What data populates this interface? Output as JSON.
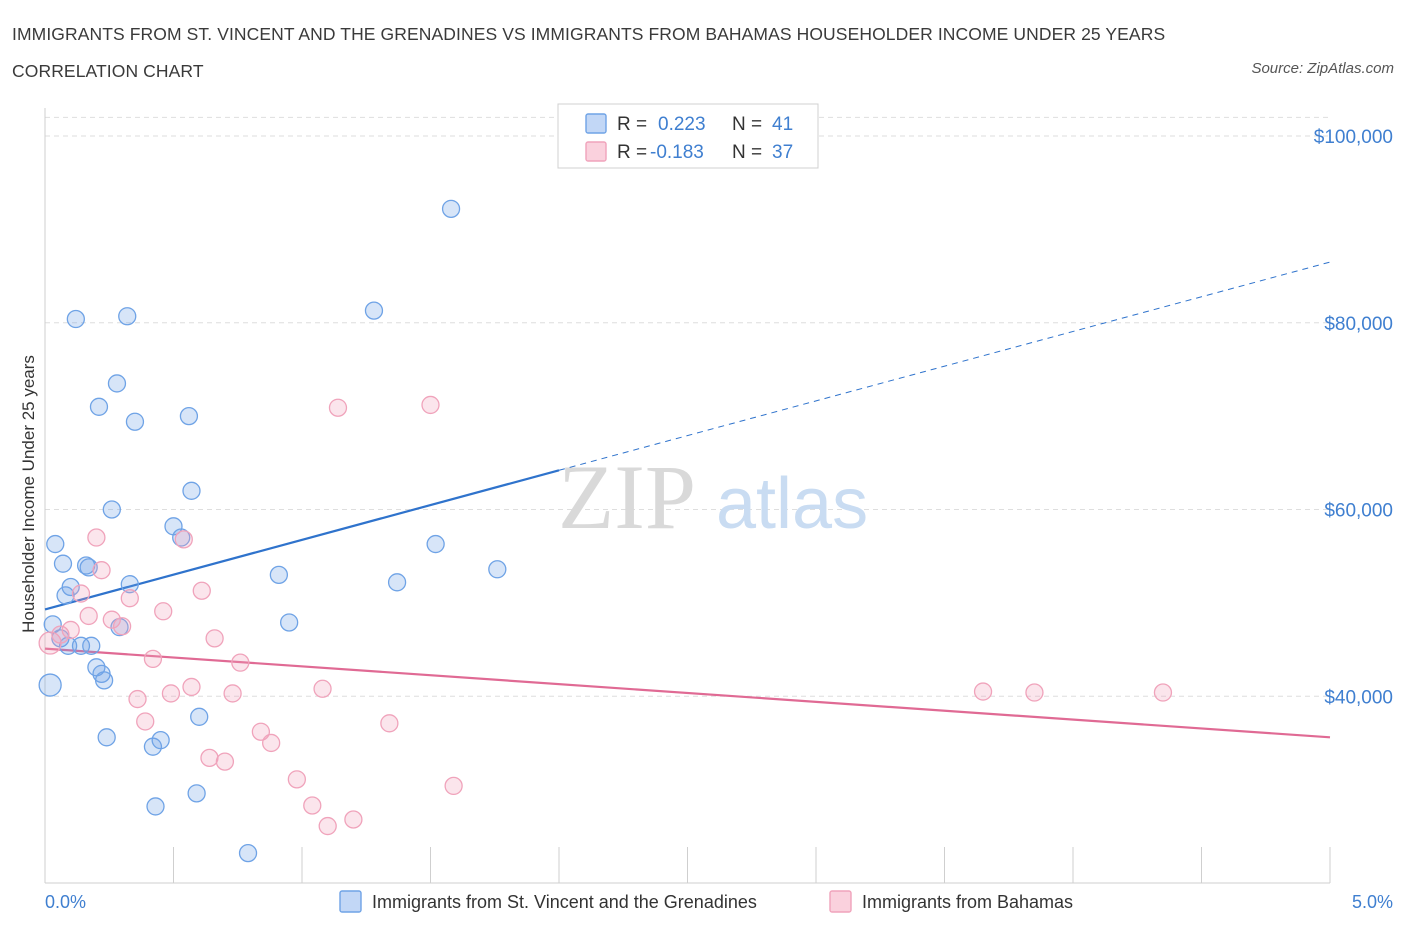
{
  "title": "IMMIGRANTS FROM ST. VINCENT AND THE GRENADINES VS IMMIGRANTS FROM BAHAMAS HOUSEHOLDER INCOME UNDER 25 YEARS CORRELATION CHART",
  "source": "Source: ZipAtlas.com",
  "watermark": {
    "zip": "ZIP",
    "atlas": "atlas"
  },
  "colors": {
    "blue": "#6fa3e6",
    "blue_line": "#2f73cc",
    "pink": "#f0a3bb",
    "pink_line": "#e06a94",
    "axis_text": "#3f7fd0"
  },
  "legend": {
    "r_label": "R =",
    "n_label": "N =",
    "rows": [
      {
        "r": "0.223",
        "n": "41"
      },
      {
        "r": "-0.183",
        "n": "37"
      }
    ]
  },
  "chart_data": {
    "type": "scatter",
    "title": "IMMIGRANTS FROM ST. VINCENT AND THE GRENADINES VS IMMIGRANTS FROM BAHAMAS HOUSEHOLDER INCOME UNDER 25 YEARS CORRELATION CHART",
    "ylabel": "Householder Income Under 25 years",
    "xlim": [
      0,
      5
    ],
    "ylim": [
      20000,
      103000
    ],
    "x_tick_labels": [
      "0.0%",
      "5.0%"
    ],
    "y_ticks": [
      40000,
      60000,
      80000,
      100000
    ],
    "y_tick_labels": [
      "$40,000",
      "$60,000",
      "$80,000",
      "$100,000"
    ],
    "grid": true,
    "series": [
      {
        "name": "Immigrants from St. Vincent and the Grenadines",
        "color": "#6fa3e6",
        "r": 0.223,
        "n": 41,
        "trend": {
          "x0": 0,
          "y0": 49300,
          "x1": 2.0,
          "y1": 64200,
          "x_dash_end": 5.0,
          "y_dash_end": 86500
        },
        "points": [
          [
            0.02,
            41200
          ],
          [
            0.03,
            47700
          ],
          [
            0.04,
            56300
          ],
          [
            0.06,
            46200
          ],
          [
            0.07,
            54200
          ],
          [
            0.08,
            50800
          ],
          [
            0.09,
            45400
          ],
          [
            0.1,
            51700
          ],
          [
            0.12,
            80400
          ],
          [
            0.14,
            45400
          ],
          [
            0.16,
            54000
          ],
          [
            0.17,
            53800
          ],
          [
            0.18,
            45400
          ],
          [
            0.2,
            43100
          ],
          [
            0.21,
            71000
          ],
          [
            0.22,
            42400
          ],
          [
            0.23,
            41700
          ],
          [
            0.24,
            35600
          ],
          [
            0.26,
            60000
          ],
          [
            0.28,
            73500
          ],
          [
            0.29,
            47400
          ],
          [
            0.32,
            80700
          ],
          [
            0.33,
            52000
          ],
          [
            0.35,
            69400
          ],
          [
            0.42,
            34600
          ],
          [
            0.43,
            28200
          ],
          [
            0.45,
            35300
          ],
          [
            0.5,
            58200
          ],
          [
            0.53,
            57000
          ],
          [
            0.56,
            70000
          ],
          [
            0.57,
            62000
          ],
          [
            0.59,
            29600
          ],
          [
            0.6,
            37800
          ],
          [
            0.79,
            23200
          ],
          [
            0.91,
            53000
          ],
          [
            0.95,
            47900
          ],
          [
            1.28,
            81300
          ],
          [
            1.37,
            52200
          ],
          [
            1.52,
            56300
          ],
          [
            1.58,
            92200
          ],
          [
            1.76,
            53600
          ]
        ]
      },
      {
        "name": "Immigrants from Bahamas",
        "color": "#f0a3bb",
        "r": -0.183,
        "n": 37,
        "trend": {
          "x0": 0,
          "y0": 45100,
          "x1": 5.0,
          "y1": 35600
        },
        "points": [
          [
            0.02,
            45700
          ],
          [
            0.06,
            46600
          ],
          [
            0.1,
            47100
          ],
          [
            0.14,
            51000
          ],
          [
            0.17,
            48600
          ],
          [
            0.2,
            57000
          ],
          [
            0.22,
            53500
          ],
          [
            0.26,
            48200
          ],
          [
            0.3,
            47500
          ],
          [
            0.33,
            50500
          ],
          [
            0.36,
            39700
          ],
          [
            0.39,
            37300
          ],
          [
            0.42,
            44000
          ],
          [
            0.46,
            49100
          ],
          [
            0.49,
            40300
          ],
          [
            0.54,
            56800
          ],
          [
            0.57,
            41000
          ],
          [
            0.61,
            51300
          ],
          [
            0.64,
            33400
          ],
          [
            0.66,
            46200
          ],
          [
            0.7,
            33000
          ],
          [
            0.73,
            40300
          ],
          [
            0.76,
            43600
          ],
          [
            0.84,
            36200
          ],
          [
            0.88,
            35000
          ],
          [
            0.98,
            31100
          ],
          [
            1.04,
            28300
          ],
          [
            1.08,
            40800
          ],
          [
            1.1,
            26100
          ],
          [
            1.14,
            70900
          ],
          [
            1.2,
            26800
          ],
          [
            1.34,
            37100
          ],
          [
            1.5,
            71200
          ],
          [
            1.59,
            30400
          ],
          [
            3.65,
            40500
          ],
          [
            3.85,
            40400
          ],
          [
            4.35,
            40400
          ]
        ]
      }
    ],
    "legend_position": "top-center"
  }
}
